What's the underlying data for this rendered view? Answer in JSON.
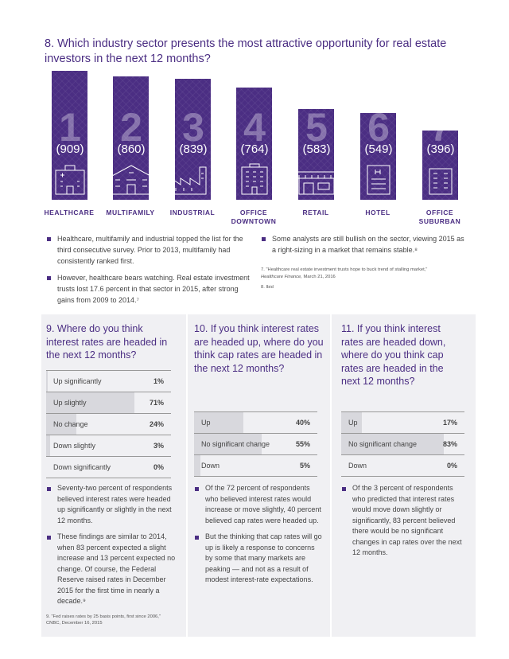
{
  "q8": {
    "question": "8. Which industry sector presents the most attractive opportunity for real estate investors in the next 12 months?"
  },
  "ranking": [
    {
      "rank": "1",
      "count": "(909)",
      "votes": 909,
      "label": "HEALTHCARE",
      "icon": "hospital-icon"
    },
    {
      "rank": "2",
      "count": "(860)",
      "votes": 860,
      "label": "MULTIFAMILY",
      "icon": "apartment-icon"
    },
    {
      "rank": "3",
      "count": "(839)",
      "votes": 839,
      "label": "INDUSTRIAL",
      "icon": "factory-icon"
    },
    {
      "rank": "4",
      "count": "(764)",
      "votes": 764,
      "label": "OFFICE DOWNTOWN",
      "icon": "office-tower-icon"
    },
    {
      "rank": "5",
      "count": "(583)",
      "votes": 583,
      "label": "RETAIL",
      "icon": "storefront-icon"
    },
    {
      "rank": "6",
      "count": "(549)",
      "votes": 549,
      "label": "HOTEL",
      "icon": "hotel-icon"
    },
    {
      "rank": "7",
      "count": "(396)",
      "votes": 396,
      "label": "OFFICE SUBURBAN",
      "icon": "office-building-icon"
    }
  ],
  "q8_notes": {
    "left": [
      "Healthcare, multifamily and industrial topped the list for the third consecutive survey. Prior to 2013, multifamily had consistently ranked first.",
      "However, healthcare bears watching. Real estate investment trusts lost 17.6 percent in that sector in 2015, after strong gains from 2009 to 2014.⁷"
    ],
    "right": [
      "Some analysts are still bullish on the sector, viewing 2015 as a right-sizing in a market that remains stable.⁸"
    ],
    "footnote7": "7. \"Healthcare real estate investment trusts hope to buck trend of stalling market,\"",
    "footnote7_source": "Healthcare Finance,",
    "footnote7_date": " March 21, 2016",
    "footnote8": "8. Ibid"
  },
  "q9": {
    "question": "9. Where do you think interest rates are headed in the next 12 months?",
    "rows": [
      {
        "label": "Up significantly",
        "value": "1%",
        "pct": 1
      },
      {
        "label": "Up slightly",
        "value": "71%",
        "pct": 71
      },
      {
        "label": "No change",
        "value": "24%",
        "pct": 24
      },
      {
        "label": "Down slightly",
        "value": "3%",
        "pct": 3
      },
      {
        "label": "Down significantly",
        "value": "0%",
        "pct": 0
      }
    ],
    "notes": [
      "Seventy-two percent of respondents believed interest rates were headed up significantly or slightly in the next 12 months.",
      "These findings are similar to 2014, when 83 percent expected a slight increase and 13 percent expected no change. Of course, the Federal Reserve raised rates in December 2015 for the first time in nearly a decade.⁹"
    ],
    "footnote": "9. \"Fed raises rates by 25 basis points, first since 2006,\" CNBC, December 16, 2015"
  },
  "q10": {
    "question": "10. If you think interest rates are headed up, where do you think cap rates are headed in the next 12 months?",
    "rows": [
      {
        "label": "Up",
        "value": "40%",
        "pct": 40
      },
      {
        "label": "No significant change",
        "value": "55%",
        "pct": 55
      },
      {
        "label": "Down",
        "value": "5%",
        "pct": 5
      }
    ],
    "notes": [
      "Of the 72 percent of respondents who believed interest rates would increase or move slightly, 40 percent believed cap rates were headed up.",
      "But the thinking that cap rates will go up is likely a response to concerns by some that many markets are peaking — and not as a result of modest interest-rate expectations."
    ]
  },
  "q11": {
    "question": "11. If you think interest rates are headed down, where do you think cap rates are headed in the next 12 months?",
    "rows": [
      {
        "label": "Up",
        "value": "17%",
        "pct": 17
      },
      {
        "label": "No significant change",
        "value": "83%",
        "pct": 83
      },
      {
        "label": "Down",
        "value": "0%",
        "pct": 0
      }
    ],
    "notes": [
      "Of the 3 percent of respondents who predicted that interest rates would move down slightly or significantly, 83 percent believed there would be no significant changes in cap rates over the next 12 months."
    ]
  },
  "colors": {
    "accent": "#4b2e83",
    "panel": "#f0f0f3",
    "fill": "#d8d8dd"
  }
}
